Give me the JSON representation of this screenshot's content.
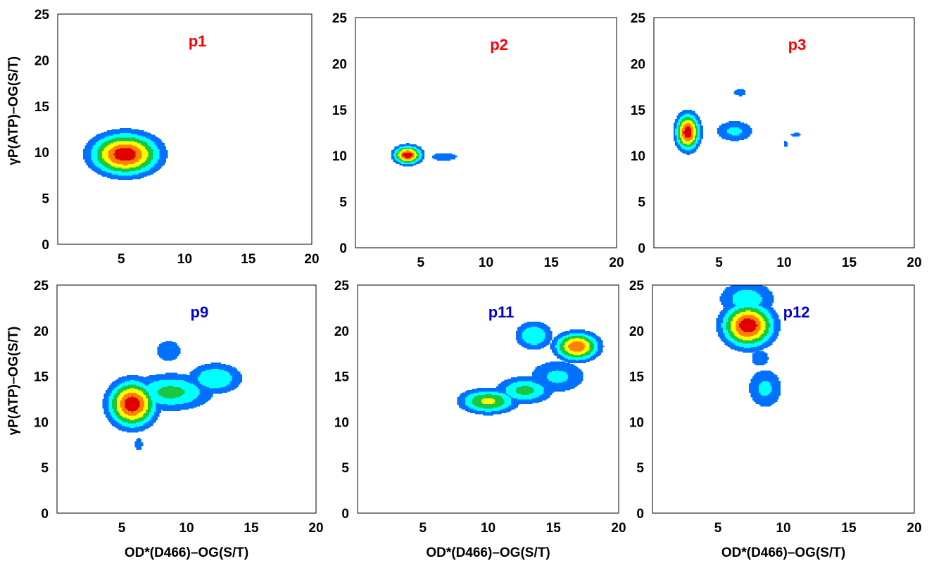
{
  "chart_data": [
    {
      "type": "contour",
      "title": "p1",
      "title_color": "#ff0000",
      "xlim": [
        0,
        20
      ],
      "ylim": [
        0,
        25
      ],
      "x_ticks": [
        5,
        10,
        15,
        20
      ],
      "y_ticks": [
        0,
        5,
        10,
        15,
        20,
        25
      ],
      "xlabel": "",
      "ylabel": "γP(ATP)–OG(S/T)",
      "hotspots": [
        {
          "x": 5.3,
          "y": 9.8,
          "sx": 1.9,
          "sy": 1.6,
          "amp": 1.0
        }
      ]
    },
    {
      "type": "contour",
      "title": "p2",
      "title_color": "#ff0000",
      "xlim": [
        0,
        20
      ],
      "ylim": [
        0,
        25
      ],
      "x_ticks": [
        5,
        10,
        15,
        20
      ],
      "y_ticks": [
        0,
        5,
        10,
        15,
        20,
        25
      ],
      "xlabel": "",
      "ylabel": "",
      "hotspots": [
        {
          "x": 4.0,
          "y": 10.1,
          "sx": 0.75,
          "sy": 0.7,
          "amp": 1.0
        },
        {
          "x": 6.8,
          "y": 9.9,
          "sx": 1.0,
          "sy": 0.45,
          "amp": 0.33
        }
      ]
    },
    {
      "type": "contour",
      "title": "p3",
      "title_color": "#ff0000",
      "xlim": [
        0,
        20
      ],
      "ylim": [
        0,
        25
      ],
      "x_ticks": [
        5,
        10,
        15,
        20
      ],
      "y_ticks": [
        0,
        5,
        10,
        15,
        20,
        25
      ],
      "xlabel": "",
      "ylabel": "",
      "hotspots": [
        {
          "x": 2.6,
          "y": 12.6,
          "sx": 0.65,
          "sy": 1.4,
          "amp": 1.0
        },
        {
          "x": 6.2,
          "y": 12.7,
          "sx": 1.2,
          "sy": 0.95,
          "amp": 0.4
        },
        {
          "x": 6.6,
          "y": 16.9,
          "sx": 0.55,
          "sy": 0.45,
          "amp": 0.3
        },
        {
          "x": 10.9,
          "y": 12.3,
          "sx": 0.5,
          "sy": 0.25,
          "amp": 0.28
        },
        {
          "x": 10.1,
          "y": 11.3,
          "sx": 0.2,
          "sy": 0.45,
          "amp": 0.28
        }
      ]
    },
    {
      "type": "contour",
      "title": "p9",
      "title_color": "#0000cc",
      "xlim": [
        0,
        20
      ],
      "ylim": [
        0,
        25
      ],
      "x_ticks": [
        5,
        10,
        15,
        20
      ],
      "y_ticks": [
        0,
        5,
        10,
        15,
        20,
        25
      ],
      "xlabel": "OD*(D466)–OG(S/T)",
      "ylabel": "γP(ATP)–OG(S/T)",
      "hotspots": [
        {
          "x": 5.8,
          "y": 12.0,
          "sx": 1.3,
          "sy": 1.8,
          "amp": 1.0
        },
        {
          "x": 8.8,
          "y": 13.3,
          "sx": 2.4,
          "sy": 1.5,
          "amp": 0.55
        },
        {
          "x": 12.2,
          "y": 14.8,
          "sx": 1.6,
          "sy": 1.3,
          "amp": 0.5
        },
        {
          "x": 8.6,
          "y": 17.8,
          "sx": 0.9,
          "sy": 1.1,
          "amp": 0.35
        },
        {
          "x": 6.3,
          "y": 7.6,
          "sx": 0.35,
          "sy": 0.8,
          "amp": 0.3
        }
      ]
    },
    {
      "type": "contour",
      "title": "p11",
      "title_color": "#0000cc",
      "xlim": [
        0,
        20
      ],
      "ylim": [
        0,
        25
      ],
      "x_ticks": [
        5,
        10,
        15,
        20
      ],
      "y_ticks": [
        0,
        5,
        10,
        15,
        20,
        25
      ],
      "xlabel": "OD*(D466)–OG(S/T)",
      "ylabel": "",
      "hotspots": [
        {
          "x": 10.0,
          "y": 12.3,
          "sx": 1.6,
          "sy": 1.0,
          "amp": 0.68
        },
        {
          "x": 12.8,
          "y": 13.5,
          "sx": 1.6,
          "sy": 1.1,
          "amp": 0.55
        },
        {
          "x": 16.8,
          "y": 18.3,
          "sx": 1.2,
          "sy": 1.1,
          "amp": 0.9
        },
        {
          "x": 13.5,
          "y": 19.5,
          "sx": 1.1,
          "sy": 1.2,
          "amp": 0.5
        },
        {
          "x": 15.3,
          "y": 15.0,
          "sx": 1.8,
          "sy": 1.5,
          "amp": 0.4
        }
      ]
    },
    {
      "type": "contour",
      "title": "p12",
      "title_color": "#0000cc",
      "xlim": [
        0,
        20
      ],
      "ylim": [
        0,
        25
      ],
      "x_ticks": [
        5,
        10,
        15,
        20
      ],
      "y_ticks": [
        0,
        5,
        10,
        15,
        20,
        25
      ],
      "xlabel": "OD*(D466)–OG(S/T)",
      "ylabel": "",
      "hotspots": [
        {
          "x": 7.3,
          "y": 20.6,
          "sx": 1.4,
          "sy": 1.7,
          "amp": 1.0
        },
        {
          "x": 7.2,
          "y": 23.5,
          "sx": 1.7,
          "sy": 1.5,
          "amp": 0.45
        },
        {
          "x": 8.6,
          "y": 13.7,
          "sx": 1.1,
          "sy": 1.8,
          "amp": 0.4
        },
        {
          "x": 8.2,
          "y": 17.0,
          "sx": 0.8,
          "sy": 1.0,
          "amp": 0.3
        }
      ]
    }
  ],
  "contour_levels": [
    0.22,
    0.36,
    0.5,
    0.64,
    0.78,
    0.9
  ],
  "contour_colors": [
    "#0070ff",
    "#00ffff",
    "#19c840",
    "#ffff00",
    "#ff8000",
    "#e00000"
  ]
}
